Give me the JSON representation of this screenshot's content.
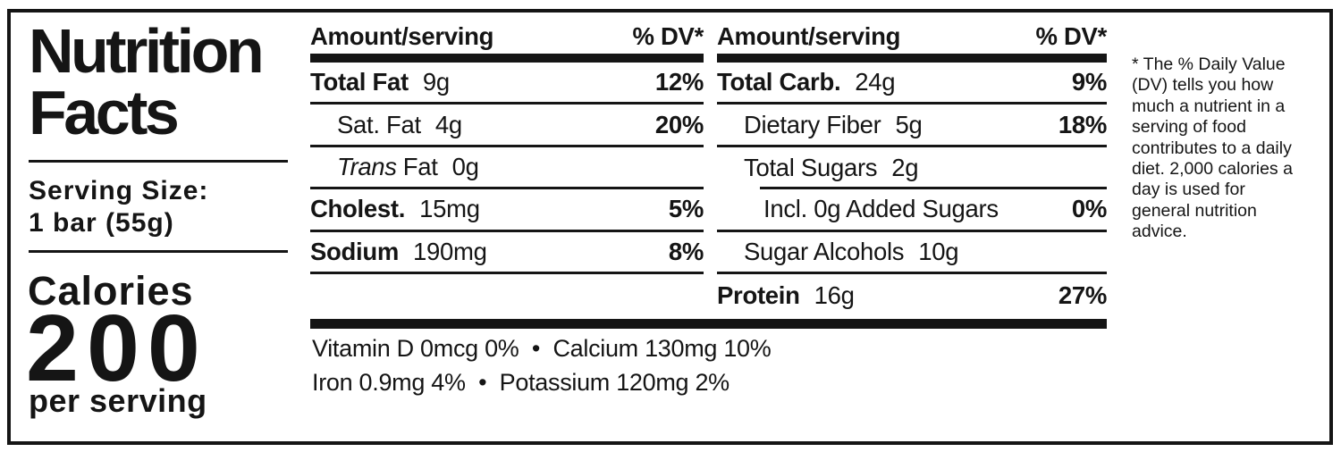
{
  "header": {
    "title": "Nutrition\nFacts",
    "serving_size_label": "Serving Size:",
    "serving_size_value": "1 bar (55g)",
    "calories_label": "Calories",
    "calories_value": "200",
    "calories_unit": "per serving"
  },
  "columns": [
    {
      "header_amount": "Amount/serving",
      "header_dv": "% DV*",
      "rows": [
        {
          "name": "Total Fat",
          "amount": "9g",
          "dv": "12%"
        },
        {
          "name": "Sat. Fat",
          "amount": "4g",
          "dv": "20%"
        },
        {
          "name_italic": "Trans",
          "name": "Fat",
          "amount": "0g",
          "dv": ""
        },
        {
          "name": "Cholest.",
          "amount": "15mg",
          "dv": "5%"
        },
        {
          "name": "Sodium",
          "amount": "190mg",
          "dv": "8%"
        }
      ]
    },
    {
      "header_amount": "Amount/serving",
      "header_dv": "% DV*",
      "rows": [
        {
          "name": "Total Carb.",
          "amount": "24g",
          "dv": "9%"
        },
        {
          "name": "Dietary Fiber",
          "amount": "5g",
          "dv": "18%"
        },
        {
          "name": "Total Sugars",
          "amount": "2g",
          "dv": ""
        },
        {
          "name": "Incl. 0g Added Sugars",
          "amount": "",
          "dv": "0%"
        },
        {
          "name": "Sugar Alcohols",
          "amount": "10g",
          "dv": ""
        },
        {
          "name": "Protein",
          "amount": "16g",
          "dv": "27%"
        }
      ]
    }
  ],
  "micronutrients": {
    "line1": "Vitamin D 0mcg 0%  •  Calcium 130mg 10%",
    "line2": "Iron 0.9mg 4%  •  Potassium 120mg 2%"
  },
  "footnote": "* The % Daily Value\n(DV) tells you how\nmuch a nutrient in a\nserving of food\ncontributes to a daily\ndiet. 2,000 calories a\nday is used for\ngeneral nutrition\nadvice.",
  "colors": {
    "ink": "#151515",
    "background": "#ffffff"
  }
}
